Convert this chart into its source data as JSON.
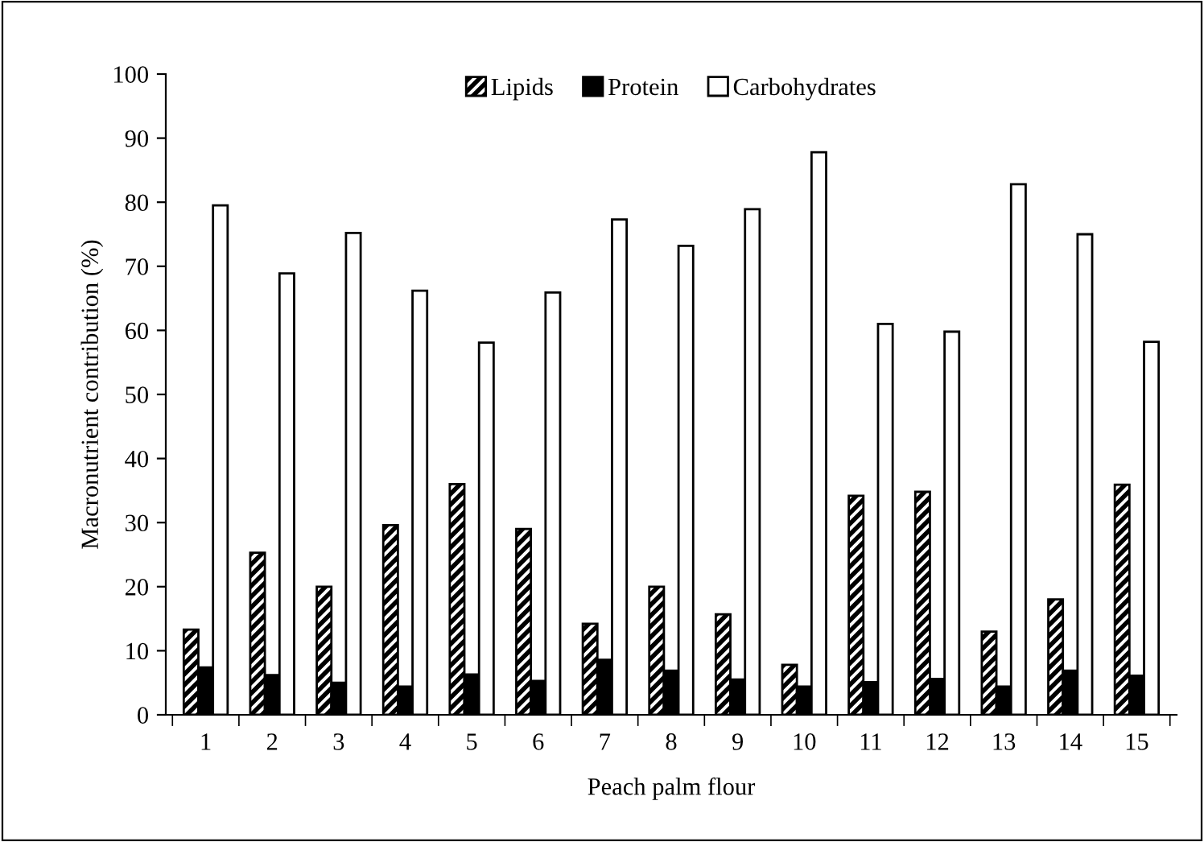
{
  "chart_data": {
    "type": "bar",
    "xlabel": "Peach palm flour",
    "ylabel": "Macronutrient contribution (%)",
    "categories": [
      "1",
      "2",
      "3",
      "4",
      "5",
      "6",
      "7",
      "8",
      "9",
      "10",
      "11",
      "12",
      "13",
      "14",
      "15"
    ],
    "series": [
      {
        "name": "Lipids",
        "color": "#000000",
        "values": [
          13.3,
          25.3,
          20.0,
          29.6,
          36.0,
          29.0,
          14.2,
          20.0,
          15.7,
          7.8,
          34.2,
          34.8,
          13.0,
          18.0,
          35.9
        ]
      },
      {
        "name": "Protein",
        "color": "#000000",
        "values": [
          7.4,
          6.2,
          5.0,
          4.4,
          6.3,
          5.3,
          8.6,
          6.9,
          5.5,
          4.4,
          5.1,
          5.6,
          4.4,
          6.9,
          6.1
        ]
      },
      {
        "name": "Carbohydrates",
        "color": "#ffffff",
        "values": [
          79.5,
          68.9,
          75.2,
          66.2,
          58.1,
          65.9,
          77.3,
          73.2,
          78.9,
          87.8,
          61.0,
          59.8,
          82.8,
          75.0,
          58.2
        ]
      }
    ],
    "ylim": [
      0,
      100
    ],
    "yticks": [
      0,
      10,
      20,
      30,
      40,
      50,
      60,
      70,
      80,
      90,
      100
    ],
    "grid": false,
    "legend": "top"
  }
}
